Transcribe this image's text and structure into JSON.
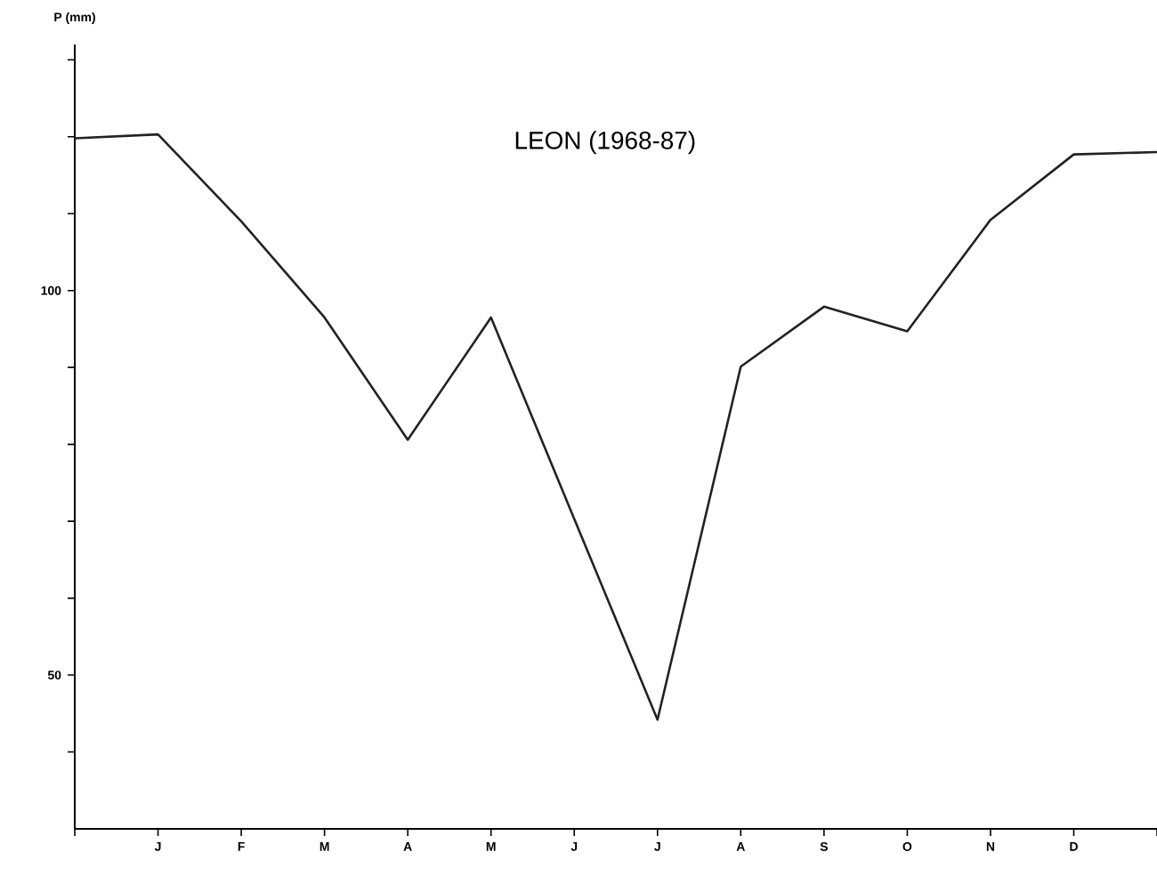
{
  "chart_data": {
    "type": "line",
    "title": "LEON (1968-87)",
    "ylabel": "P (mm)",
    "ylim": [
      30,
      132
    ],
    "categories": [
      null,
      "J",
      "F",
      "M",
      "A",
      "M",
      "J",
      "J",
      "A",
      "S",
      "O",
      "N",
      "D",
      null
    ],
    "yticks": [
      {
        "value": 40,
        "label": null
      },
      50,
      {
        "value": 60,
        "label": null
      },
      {
        "value": 70,
        "label": null
      },
      {
        "value": 80,
        "label": null
      },
      {
        "value": 90,
        "label": null
      },
      100,
      {
        "value": 110,
        "label": null
      },
      {
        "value": 120,
        "label": null
      },
      {
        "value": 130,
        "label": null
      }
    ],
    "series": [
      {
        "color": "#222222",
        "values": [
          119.8,
          120.3,
          109,
          96.5,
          80.6,
          96.5,
          70.3,
          44.2,
          90.1,
          97.9,
          94.7,
          109.2,
          117.7,
          118
        ]
      }
    ],
    "marker": "none",
    "line_style": "solid"
  }
}
